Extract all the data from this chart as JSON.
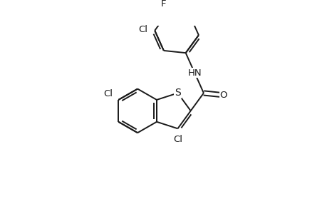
{
  "background_color": "#ffffff",
  "line_color": "#1a1a1a",
  "line_width": 1.4,
  "font_size": 9.5,
  "figsize": [
    4.6,
    3.0
  ],
  "dpi": 100,
  "xlim": [
    0,
    460
  ],
  "ylim": [
    0,
    300
  ]
}
